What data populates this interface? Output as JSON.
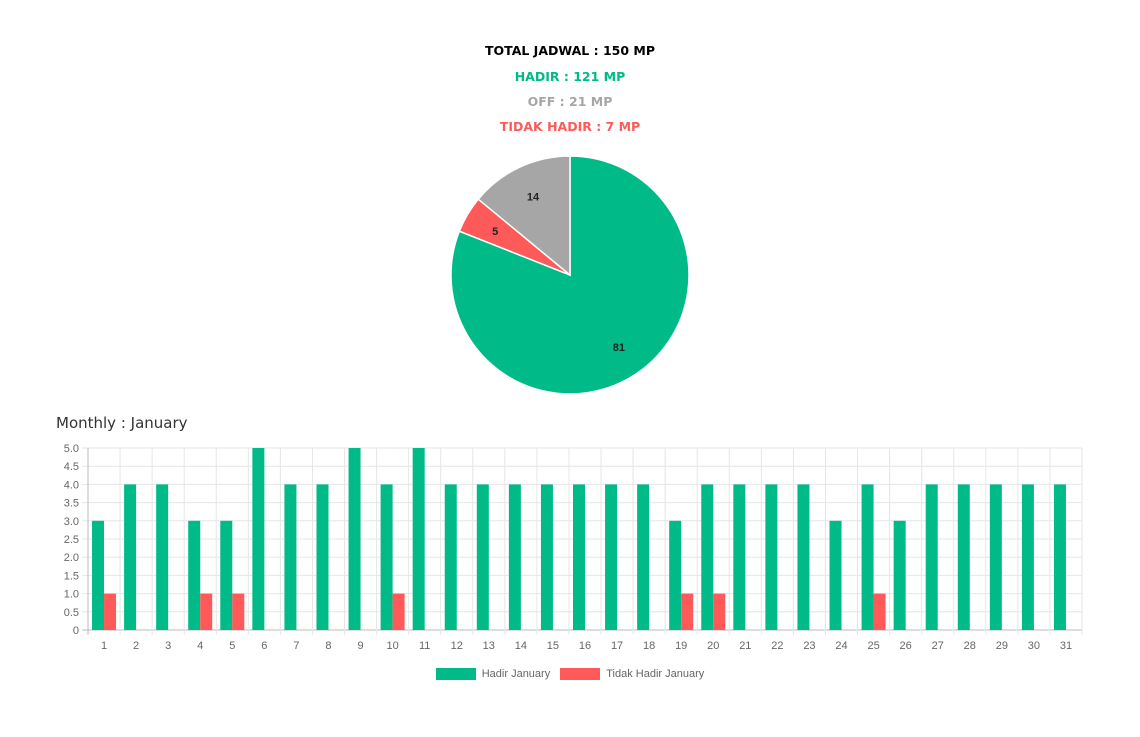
{
  "summary": {
    "total": "TOTAL JADWAL : 150 MP",
    "hadir": "HADIR : 121 MP",
    "off": "OFF : 21 MP",
    "tidak_hadir": "TIDAK HADIR : 7 MP"
  },
  "colors": {
    "hadir": "#00bb88",
    "off": "#a6a6a6",
    "tidak_hadir": "#ff5a5a",
    "total": "#000000"
  },
  "chart_data": [
    {
      "type": "pie",
      "slices": [
        {
          "label": "81",
          "value": 81,
          "color": "#00bb88"
        },
        {
          "label": "5",
          "value": 5,
          "color": "#ff5a5a"
        },
        {
          "label": "14",
          "value": 14,
          "color": "#a6a6a6"
        }
      ]
    },
    {
      "type": "bar",
      "title": "Monthly : January",
      "categories": [
        "1",
        "2",
        "3",
        "4",
        "5",
        "6",
        "7",
        "8",
        "9",
        "10",
        "11",
        "12",
        "13",
        "14",
        "15",
        "16",
        "17",
        "18",
        "19",
        "20",
        "21",
        "22",
        "23",
        "24",
        "25",
        "26",
        "27",
        "28",
        "29",
        "30",
        "31"
      ],
      "series": [
        {
          "name": "Hadir January",
          "color": "#00bb88",
          "values": [
            3,
            4,
            4,
            3,
            3,
            5,
            4,
            4,
            5,
            4,
            5,
            4,
            4,
            4,
            4,
            4,
            4,
            4,
            3,
            4,
            4,
            4,
            4,
            3,
            4,
            3,
            4,
            4,
            4,
            4,
            4
          ]
        },
        {
          "name": "Tidak Hadir January",
          "color": "#ff5a5a",
          "values": [
            1,
            0,
            0,
            1,
            1,
            0,
            0,
            0,
            0,
            1,
            0,
            0,
            0,
            0,
            0,
            0,
            0,
            0,
            1,
            1,
            0,
            0,
            0,
            0,
            1,
            0,
            0,
            0,
            0,
            0,
            0
          ]
        }
      ],
      "ylim": [
        0,
        5
      ],
      "yticks": [
        "0",
        "0.5",
        "1.0",
        "1.5",
        "2.0",
        "2.5",
        "3.0",
        "3.5",
        "4.0",
        "4.5",
        "5.0"
      ],
      "grid": true,
      "legend": "bottom"
    }
  ]
}
